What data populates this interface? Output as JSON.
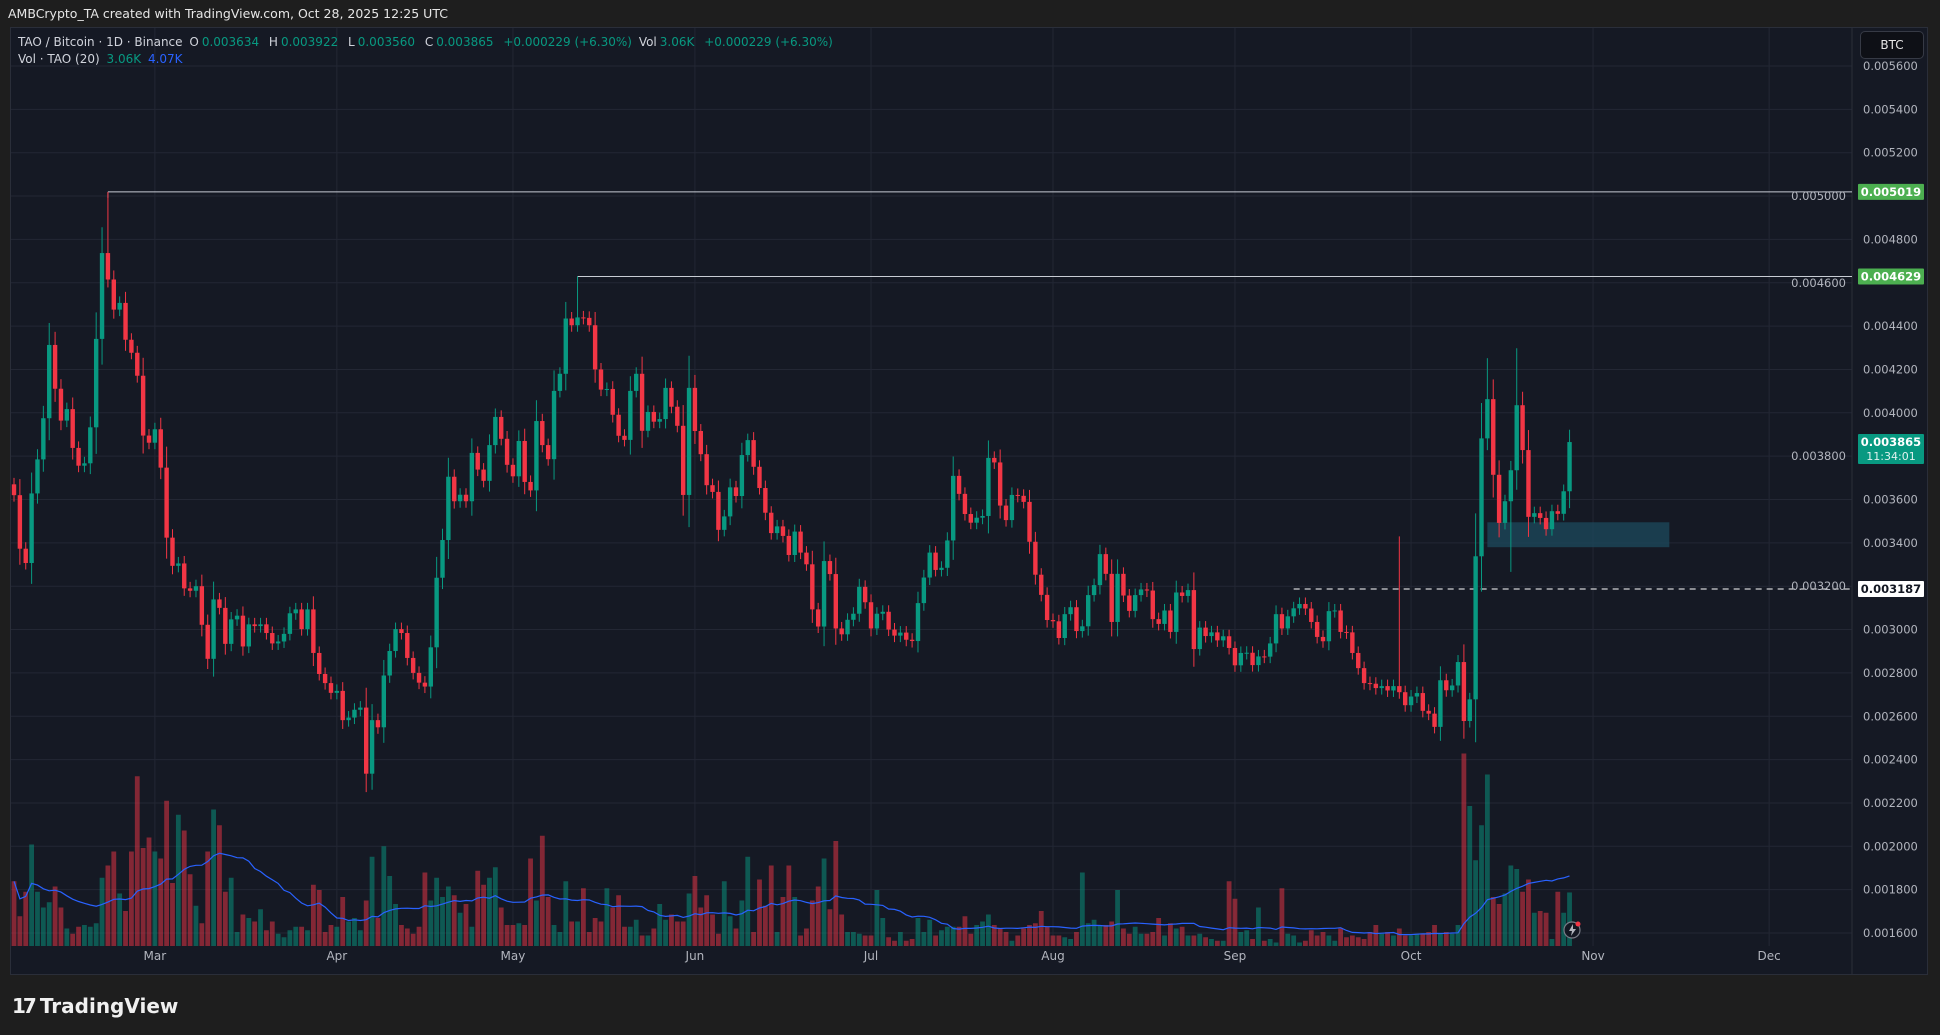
{
  "credit": "AMBCrypto_TA created with TradingView.com, Oct 28, 2025 12:25 UTC",
  "legend": {
    "symbol": "TAO / Bitcoin · 1D · Binance",
    "o_label": "O",
    "o": "0.003634",
    "h_label": "H",
    "h": "0.003922",
    "l_label": "L",
    "l": "0.003560",
    "c_label": "C",
    "c": "0.003865",
    "change": "+0.000229 (+6.30%)",
    "vol_label": "Vol",
    "vol": "3.06K",
    "vol_change": "+0.000229 (+6.30%)",
    "vol_indicator": "Vol · TAO (20)",
    "vol_value": "3.06K",
    "vol_ma_value": "4.07K"
  },
  "currency_button": "BTC",
  "branding": {
    "logo_text": "TradingView"
  },
  "colors": {
    "up": "#089981",
    "down": "#f23645",
    "volume_ma": "#2962ff",
    "level_badge": "#4caf50",
    "zone": "#1c4a5c",
    "background": "#151924"
  },
  "icons": {
    "replay": "lightning-icon"
  },
  "chart_data": {
    "type": "candlestick",
    "interval": "1D",
    "first_date": "2025-02-05",
    "last_date": "2025-10-28",
    "first_open": 0.00367,
    "y_axis": {
      "min": 0.0016,
      "max": 0.0056,
      "step": 0.0002,
      "tick_labels": [
        "0.005600",
        "0.005400",
        "0.005200",
        "0.005000",
        "0.004800",
        "0.004600",
        "0.004400",
        "0.004200",
        "0.004000",
        "0.003800",
        "0.003600",
        "0.003400",
        "0.003200",
        "0.003000",
        "0.002800",
        "0.002600",
        "0.002400",
        "0.002200",
        "0.002000",
        "0.001800",
        "0.001600"
      ]
    },
    "x_axis": {
      "tick_labels": [
        {
          "label": "Mar",
          "date": "2025-03-01"
        },
        {
          "label": "Apr",
          "date": "2025-04-01"
        },
        {
          "label": "May",
          "date": "2025-05-01"
        },
        {
          "label": "Jun",
          "date": "2025-06-01"
        },
        {
          "label": "Jul",
          "date": "2025-07-01"
        },
        {
          "label": "Aug",
          "date": "2025-08-01"
        },
        {
          "label": "Sep",
          "date": "2025-09-01"
        },
        {
          "label": "Oct",
          "date": "2025-10-01"
        },
        {
          "label": "Nov",
          "date": "2025-11-01"
        },
        {
          "label": "Dec",
          "date": "2025-12-01"
        }
      ]
    },
    "grid": true,
    "closes": [
      0.00362,
      0.003373,
      0.003307,
      0.003628,
      0.003785,
      0.003975,
      0.004313,
      0.004111,
      0.003964,
      0.004017,
      0.003838,
      0.003756,
      0.003767,
      0.003933,
      0.004341,
      0.004737,
      0.004615,
      0.004476,
      0.004507,
      0.004337,
      0.004277,
      0.004171,
      0.003895,
      0.003862,
      0.003924,
      0.003747,
      0.003424,
      0.003294,
      0.003305,
      0.00319,
      0.003179,
      0.0032,
      0.003022,
      0.002865,
      0.003139,
      0.0031,
      0.002934,
      0.003047,
      0.003064,
      0.002922,
      0.003024,
      0.003016,
      0.003024,
      0.002984,
      0.002936,
      0.002945,
      0.00298,
      0.003075,
      0.003093,
      0.003002,
      0.003093,
      0.002892,
      0.002795,
      0.002753,
      0.002708,
      0.002717,
      0.002582,
      0.002594,
      0.00263,
      0.00264,
      0.002335,
      0.002582,
      0.002549,
      0.002788,
      0.002901,
      0.003002,
      0.002984,
      0.002869,
      0.0028,
      0.002755,
      0.002737,
      0.002918,
      0.003239,
      0.003413,
      0.003705,
      0.003592,
      0.003622,
      0.003592,
      0.003815,
      0.003738,
      0.003686,
      0.003851,
      0.003981,
      0.00388,
      0.00376,
      0.003707,
      0.00387,
      0.003681,
      0.003642,
      0.003962,
      0.003851,
      0.003786,
      0.004101,
      0.00418,
      0.004435,
      0.004404,
      0.00444,
      0.004438,
      0.004404,
      0.0042,
      0.004107,
      0.00411,
      0.003991,
      0.003894,
      0.003875,
      0.004101,
      0.00418,
      0.003917,
      0.004004,
      0.003959,
      0.003971,
      0.004115,
      0.004028,
      0.00394,
      0.003621,
      0.004115,
      0.003916,
      0.003809,
      0.003666,
      0.003635,
      0.00346,
      0.003522,
      0.003656,
      0.003616,
      0.003805,
      0.003874,
      0.003751,
      0.003653,
      0.003539,
      0.003445,
      0.003476,
      0.003432,
      0.003344,
      0.003452,
      0.003355,
      0.003301,
      0.003093,
      0.003014,
      0.003316,
      0.003256,
      0.003005,
      0.002978,
      0.003045,
      0.003073,
      0.003197,
      0.003126,
      0.003005,
      0.003073,
      0.003082,
      0.003,
      0.002972,
      0.002986,
      0.002953,
      0.002947,
      0.003122,
      0.00324,
      0.003355,
      0.003275,
      0.003285,
      0.003411,
      0.003709,
      0.003626,
      0.003533,
      0.003493,
      0.003516,
      0.003524,
      0.003792,
      0.003771,
      0.003572,
      0.003505,
      0.003621,
      0.003617,
      0.003589,
      0.003405,
      0.003253,
      0.00316,
      0.003044,
      0.003038,
      0.002961,
      0.003071,
      0.003103,
      0.002993,
      0.003015,
      0.003159,
      0.003205,
      0.003348,
      0.003257,
      0.003035,
      0.003257,
      0.003157,
      0.003086,
      0.003159,
      0.003185,
      0.00318,
      0.003048,
      0.003026,
      0.003088,
      0.002989,
      0.003171,
      0.003155,
      0.003182,
      0.00291,
      0.003009,
      0.00297,
      0.002987,
      0.00295,
      0.002969,
      0.002915,
      0.002835,
      0.002892,
      0.002893,
      0.002836,
      0.002876,
      0.002875,
      0.002936,
      0.003071,
      0.003005,
      0.003061,
      0.003098,
      0.003118,
      0.003097,
      0.003035,
      0.002966,
      0.002946,
      0.003085,
      0.003088,
      0.002989,
      0.002987,
      0.002892,
      0.002822,
      0.002753,
      0.00275,
      0.00273,
      0.002739,
      0.002719,
      0.002739,
      0.002711,
      0.002651,
      0.002691,
      0.002707,
      0.002625,
      0.002612,
      0.002551,
      0.002766,
      0.00272,
      0.002742,
      0.00285,
      0.002578,
      0.002678,
      0.003338,
      0.003882,
      0.004063,
      0.003714,
      0.003492,
      0.003592,
      0.003735,
      0.004035,
      0.003828,
      0.00352,
      0.003537,
      0.003515,
      0.003463,
      0.003546,
      0.003534,
      0.003638,
      0.003865
    ],
    "notable_extremes": [
      {
        "index": 16,
        "high": 0.005019
      },
      {
        "index": 60,
        "low": 0.00225
      },
      {
        "index": 96,
        "high": 0.004629
      },
      {
        "index": 236,
        "high": 0.00343
      },
      {
        "index": 251,
        "high": 0.004252
      },
      {
        "index": 252,
        "high": 0.004154
      },
      {
        "index": 255,
        "low": 0.003266
      },
      {
        "index": 256,
        "high": 0.004298
      },
      {
        "index": 265,
        "high": 0.003922,
        "low": 0.00356
      }
    ],
    "volume_k": [
      3.7,
      1.7,
      3.1,
      5.8,
      3.1,
      2.2,
      2.5,
      3.4,
      2.2,
      1.0,
      0.7,
      1.1,
      1.2,
      1.1,
      1.3,
      3.9,
      4.6,
      5.4,
      3.0,
      2.0,
      5.4,
      9.7,
      5.6,
      6.2,
      5.4,
      5.0,
      8.3,
      3.6,
      7.5,
      6.6,
      4.1,
      2.3,
      1.3,
      5.4,
      7.8,
      6.9,
      3.1,
      3.9,
      0.8,
      1.8,
      1.6,
      1.4,
      2.1,
      0.9,
      1.4,
      0.7,
      0.5,
      0.9,
      1.1,
      1.1,
      0.9,
      3.5,
      3.2,
      0.8,
      1.2,
      1.1,
      2.8,
      1.4,
      1.6,
      0.9,
      2.6,
      5.1,
      1.6,
      5.7,
      4.0,
      2.4,
      1.2,
      1.0,
      0.7,
      1.1,
      4.2,
      2.6,
      3.9,
      2.8,
      3.4,
      2.9,
      1.9,
      2.4,
      1.1,
      4.3,
      3.5,
      3.9,
      4.5,
      2.2,
      1.2,
      1.2,
      1.3,
      1.2,
      5.0,
      2.6,
      6.3,
      2.8,
      1.2,
      0.8,
      3.7,
      1.4,
      1.4,
      3.3,
      0.8,
      1.6,
      1.4,
      3.3,
      2.2,
      2.9,
      1.1,
      1.1,
      1.5,
      0.6,
      0.6,
      1.0,
      2.4,
      1.5,
      1.8,
      1.4,
      1.4,
      3.0,
      4.0,
      2.2,
      2.9,
      1.8,
      0.7,
      3.7,
      1.7,
      1.0,
      2.6,
      5.1,
      0.8,
      3.8,
      2.3,
      4.6,
      0.8,
      2.8,
      4.6,
      2.8,
      0.6,
      1.0,
      2.6,
      3.4,
      5.0,
      2.1,
      6.0,
      1.8,
      0.8,
      0.8,
      0.7,
      0.6,
      0.6,
      3.2,
      1.6,
      0.5,
      0.3,
      0.8,
      0.3,
      0.4,
      1.6,
      0.8,
      1.5,
      0.6,
      0.9,
      1.1,
      1.1,
      1.1,
      1.7,
      0.7,
      1.2,
      1.4,
      1.8,
      1.2,
      1.0,
      0.8,
      0.3,
      0.6,
      1.0,
      1.2,
      1.3,
      2.0,
      1.1,
      0.6,
      0.6,
      0.5,
      0.4,
      0.8,
      4.2,
      1.3,
      1.5,
      1.2,
      1.2,
      1.4,
      3.2,
      1.0,
      0.7,
      1.1,
      0.7,
      0.7,
      0.8,
      1.6,
      0.6,
      1.3,
      1.0,
      1.1,
      0.6,
      0.6,
      0.7,
      0.5,
      0.4,
      0.3,
      0.3,
      3.7,
      2.7,
      0.8,
      0.9,
      0.4,
      2.2,
      0.3,
      0.4,
      0.2,
      3.3,
      0.7,
      0.6,
      0.2,
      0.3,
      0.9,
      0.6,
      0.8,
      0.6,
      0.3,
      1.0,
      0.5,
      0.6,
      0.5,
      0.4,
      0.8,
      1.2,
      0.7,
      0.8,
      0.6,
      1.0,
      0.6,
      0.6,
      0.7,
      0.7,
      0.8,
      1.2,
      0.7,
      0.8,
      0.7,
      1.2,
      11.0,
      8.0,
      4.9,
      6.9,
      9.8,
      2.8,
      2.4,
      3.0,
      4.6,
      4.4,
      3.1,
      3.8,
      1.9,
      2.0,
      1.9,
      0.4,
      3.1,
      1.9,
      3.06
    ],
    "volume_ma_period": 20,
    "horizontal_levels": [
      {
        "price": 0.005019,
        "label": "0.005019",
        "from_index": 16,
        "style": "solid",
        "badge": "green"
      },
      {
        "price": 0.004629,
        "label": "0.004629",
        "from_index": 96,
        "style": "solid",
        "badge": "green"
      },
      {
        "price": 0.003187,
        "label": "0.003187",
        "from_index": 218,
        "style": "dashed",
        "badge": "white"
      }
    ],
    "zone": {
      "from_index": 251,
      "to_index": 282,
      "top": 0.003495,
      "bottom": 0.00338
    },
    "last_price": {
      "label": "0.003865",
      "countdown": "11:34:01"
    }
  }
}
